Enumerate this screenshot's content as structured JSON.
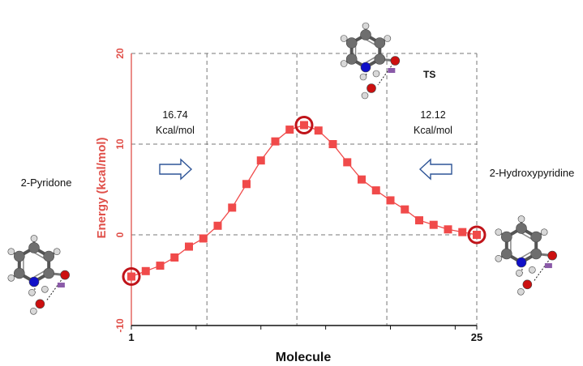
{
  "chart_data": {
    "type": "line",
    "xlabel": "Molecule",
    "ylabel": "Energy (kcal/mol)",
    "xlim": [
      1,
      25
    ],
    "ylim": [
      -10,
      20
    ],
    "x_ticks": [
      1,
      25
    ],
    "y_ticks": [
      -10,
      0,
      10,
      20
    ],
    "grid": true,
    "series": [
      {
        "color": "#f04a4a",
        "x": [
          1,
          2,
          3,
          4,
          5,
          6,
          7,
          8,
          9,
          10,
          11,
          12,
          13,
          14,
          15,
          16,
          17,
          18,
          19,
          20,
          21,
          22,
          23,
          24,
          25
        ],
        "y": [
          -4.6,
          -4.0,
          -3.4,
          -2.5,
          -1.3,
          -0.4,
          1.0,
          3.0,
          5.6,
          8.2,
          10.3,
          11.6,
          12.1,
          11.5,
          10.0,
          8.0,
          6.1,
          4.9,
          3.8,
          2.8,
          1.6,
          1.1,
          0.6,
          0.3,
          0.0
        ]
      }
    ],
    "highlighted_points": [
      1,
      13,
      25
    ],
    "annotations": [
      {
        "id": "left-barrier",
        "line1": "16.74",
        "line2": "Kcal/mol"
      },
      {
        "id": "right-barrier",
        "line1": "12.12",
        "line2": "Kcal/mol"
      }
    ],
    "species_labels": {
      "left": "2-Pyridone",
      "right": "2-Hydroxypyridine",
      "ts": "TS"
    }
  },
  "colors": {
    "series": "#f04a4a",
    "highlight_ring": "#c0141a",
    "y_axis": "#e0504a",
    "arrow": "#2f5597",
    "carbon": "#6e6e6e",
    "nitrogen": "#1010c8",
    "oxygen": "#cc1010",
    "hydrogen": "#d8d8d8",
    "bond_marker": "#8a5aa8"
  }
}
